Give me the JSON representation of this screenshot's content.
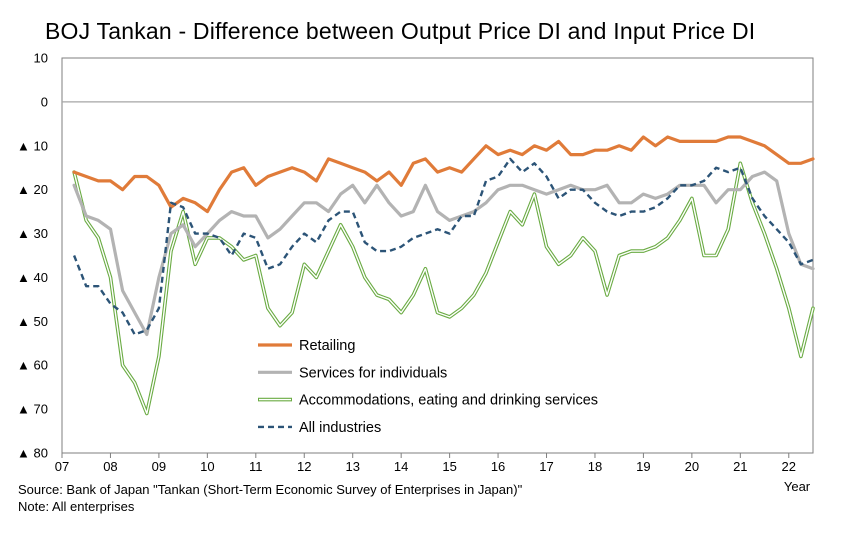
{
  "title": "BOJ Tankan - Difference between Output Price DI and Input Price DI",
  "source": "Source: Bank of Japan \"Tankan (Short-Term Economic Survey of Enterprises in Japan)\"",
  "note": "Note: All enterprises",
  "colors": {
    "retailing": "#e07b39",
    "services": "#b3b3b3",
    "accommodations": "#6aab43",
    "all": "#2c5477",
    "zero_line": "#a6a6a6",
    "frame": "#7f7f7f"
  },
  "chart_data": {
    "type": "line",
    "title": "BOJ Tankan - Difference between Output Price DI and Input Price DI",
    "xlabel": "Year",
    "ylabel": "",
    "ylim": [
      -80,
      10
    ],
    "xlim": [
      2007.0,
      2022.5
    ],
    "grid": false,
    "legend_position": "lower-center",
    "x_tick_labels": [
      "07",
      "08",
      "09",
      "10",
      "11",
      "12",
      "13",
      "14",
      "15",
      "16",
      "17",
      "18",
      "19",
      "20",
      "21",
      "22"
    ],
    "y_ticks": [
      10,
      0,
      -10,
      -20,
      -30,
      -40,
      -50,
      -60,
      -70,
      -80
    ],
    "y_tick_labels": [
      "10",
      "0",
      "▲ 10",
      "▲ 20",
      "▲ 30",
      "▲ 40",
      "▲ 50",
      "▲ 60",
      "▲ 70",
      "▲ 80"
    ],
    "x_start": 2007.25,
    "x_step": 0.25,
    "series": [
      {
        "name": "Retailing",
        "key": "retailing",
        "style": "solid",
        "values": [
          -16,
          -17,
          -18,
          -18,
          -20,
          -17,
          -17,
          -19,
          -24,
          -22,
          -23,
          -25,
          -20,
          -16,
          -15,
          -19,
          -17,
          -16,
          -15,
          -16,
          -18,
          -13,
          -14,
          -15,
          -16,
          -18,
          -16,
          -19,
          -14,
          -13,
          -16,
          -15,
          -16,
          -13,
          -10,
          -12,
          -11,
          -12,
          -10,
          -11,
          -9,
          -12,
          -12,
          -11,
          -11,
          -10,
          -11,
          -8,
          -10,
          -8,
          -9,
          -9,
          -9,
          -9,
          -8,
          -8,
          -9,
          -10,
          -12,
          -14,
          -14,
          -13
        ]
      },
      {
        "name": "Services for individuals",
        "key": "services",
        "style": "solid",
        "values": [
          -19,
          -26,
          -27,
          -29,
          -43,
          -48,
          -53,
          -40,
          -30,
          -28,
          -33,
          -30,
          -27,
          -25,
          -26,
          -26,
          -31,
          -29,
          -26,
          -23,
          -23,
          -25,
          -21,
          -19,
          -23,
          -19,
          -23,
          -26,
          -25,
          -19,
          -25,
          -27,
          -26,
          -25,
          -23,
          -20,
          -19,
          -19,
          -20,
          -21,
          -20,
          -19,
          -20,
          -20,
          -19,
          -23,
          -23,
          -21,
          -22,
          -21,
          -19,
          -19,
          -19,
          -23,
          -20,
          -20,
          -17,
          -16,
          -18,
          -30,
          -37,
          -38
        ]
      },
      {
        "name": "Accommodations, eating and drinking services",
        "key": "accommodations",
        "style": "thin",
        "values": [
          -16,
          -27,
          -31,
          -40,
          -60,
          -64,
          -71,
          -58,
          -34,
          -25,
          -37,
          -31,
          -31,
          -33,
          -36,
          -35,
          -47,
          -51,
          -48,
          -37,
          -40,
          -34,
          -28,
          -33,
          -40,
          -44,
          -45,
          -48,
          -44,
          -38,
          -48,
          -49,
          -47,
          -44,
          -39,
          -32,
          -25,
          -28,
          -21,
          -33,
          -37,
          -35,
          -31,
          -34,
          -44,
          -35,
          -34,
          -34,
          -33,
          -31,
          -27,
          -22,
          -35,
          -35,
          -29,
          -14,
          -23,
          -30,
          -38,
          -47,
          -58,
          -47
        ]
      },
      {
        "name": "All industries",
        "key": "all",
        "style": "dashed",
        "values": [
          -35,
          -42,
          -42,
          -46,
          -48,
          -53,
          -52,
          -47,
          -23,
          -24,
          -30,
          -30,
          -31,
          -35,
          -30,
          -31,
          -38,
          -37,
          -33,
          -30,
          -32,
          -27,
          -25,
          -25,
          -32,
          -34,
          -34,
          -33,
          -31,
          -30,
          -29,
          -30,
          -26,
          -26,
          -18,
          -17,
          -13,
          -16,
          -14,
          -17,
          -22,
          -20,
          -20,
          -23,
          -25,
          -26,
          -25,
          -25,
          -24,
          -22,
          -19,
          -19,
          -18,
          -15,
          -16,
          -15,
          -22,
          -26,
          -29,
          -32,
          -37,
          -36
        ]
      }
    ]
  }
}
